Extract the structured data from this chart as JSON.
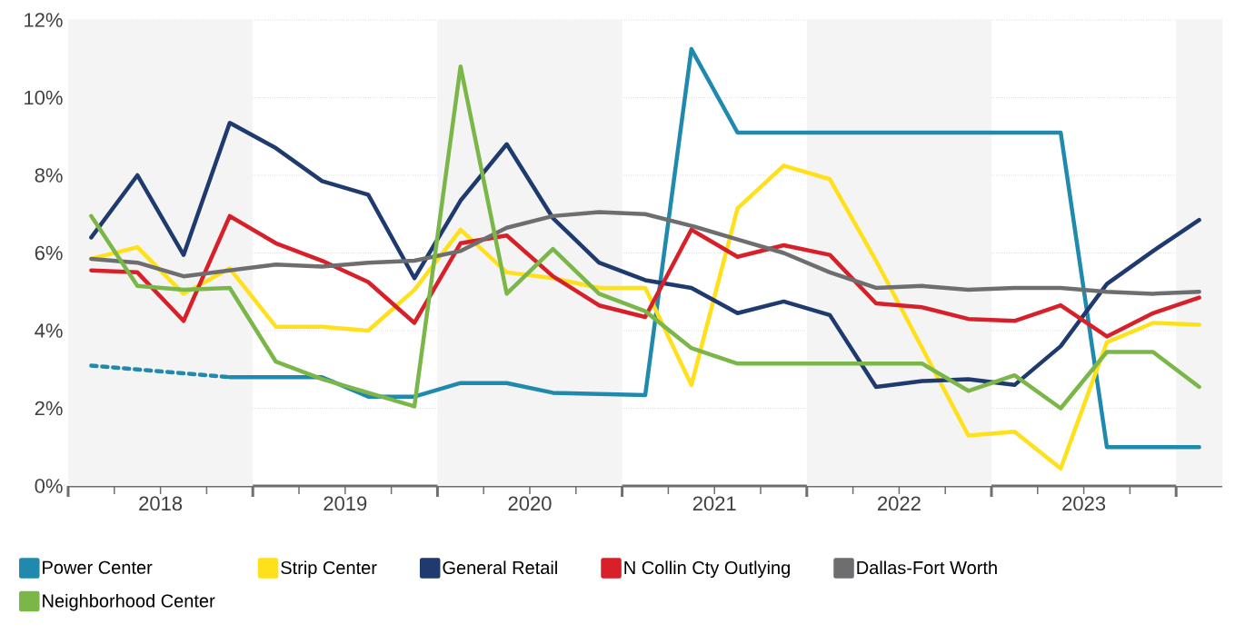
{
  "chart_data": {
    "type": "line",
    "x": [
      2018.125,
      2018.375,
      2018.625,
      2018.875,
      2019.125,
      2019.375,
      2019.625,
      2019.875,
      2020.125,
      2020.375,
      2020.625,
      2020.875,
      2021.125,
      2021.375,
      2021.625,
      2021.875,
      2022.125,
      2022.375,
      2022.625,
      2022.875,
      2023.125,
      2023.375,
      2023.625,
      2023.875,
      2024.125
    ],
    "series": [
      {
        "name": "Power Center",
        "color": "#1f8aad",
        "values": [
          null,
          null,
          null,
          2.8,
          2.8,
          2.8,
          2.3,
          2.3,
          2.65,
          2.65,
          2.4,
          2.37,
          2.34,
          11.25,
          9.1,
          9.1,
          9.1,
          9.1,
          9.1,
          9.1,
          9.1,
          9.1,
          1.0,
          1.0,
          1.0
        ]
      },
      {
        "name": "Strip Center",
        "color": "#ffe01b",
        "values": [
          5.85,
          6.15,
          4.95,
          5.6,
          4.1,
          4.1,
          4.0,
          5.05,
          6.6,
          5.5,
          5.35,
          5.1,
          5.1,
          2.6,
          7.15,
          8.25,
          7.9,
          5.8,
          3.55,
          1.3,
          1.4,
          0.45,
          3.7,
          4.2,
          4.15
        ]
      },
      {
        "name": "General Retail",
        "color": "#1f3a6e",
        "values": [
          6.4,
          8.0,
          5.95,
          9.35,
          8.7,
          7.85,
          7.5,
          5.35,
          7.35,
          8.8,
          6.9,
          5.75,
          5.3,
          5.1,
          4.45,
          4.75,
          4.4,
          2.55,
          2.7,
          2.75,
          2.6,
          3.6,
          5.2,
          6.05,
          6.85
        ]
      },
      {
        "name": "N Collin Cty Outlying",
        "color": "#d7202a",
        "values": [
          5.55,
          5.5,
          4.25,
          6.95,
          6.25,
          5.8,
          5.25,
          4.2,
          6.25,
          6.45,
          5.4,
          4.65,
          4.35,
          6.6,
          5.9,
          6.2,
          5.95,
          4.7,
          4.6,
          4.3,
          4.25,
          4.65,
          3.85,
          4.45,
          4.85
        ]
      },
      {
        "name": "Dallas-Fort Worth",
        "color": "#6d6e70",
        "values": [
          5.85,
          5.75,
          5.4,
          5.55,
          5.7,
          5.65,
          5.75,
          5.8,
          6.05,
          6.65,
          6.95,
          7.05,
          7.0,
          6.7,
          6.35,
          6.0,
          5.5,
          5.1,
          5.15,
          5.05,
          5.1,
          5.1,
          5.0,
          4.95,
          5.0
        ]
      },
      {
        "name": "Neighborhood Center",
        "color": "#7ab648",
        "values": [
          6.95,
          5.15,
          5.05,
          5.1,
          3.2,
          2.75,
          2.4,
          2.05,
          10.8,
          4.95,
          6.1,
          4.95,
          4.5,
          3.55,
          3.15,
          3.15,
          3.15,
          3.15,
          3.15,
          2.45,
          2.85,
          2.0,
          3.45,
          3.45,
          2.55
        ]
      },
      {
        "color": "#1f8aad",
        "line_style": "dotted",
        "values": [
          3.1,
          3.0,
          2.9,
          2.8,
          null,
          null,
          null,
          null,
          null,
          null,
          null,
          null,
          null,
          null,
          null,
          null,
          null,
          null,
          null,
          null,
          null,
          null,
          null,
          null,
          null
        ]
      }
    ],
    "xlim": [
      2018,
      2024.25
    ],
    "xticks": [
      {
        "value": 2018.5,
        "label": "2018"
      },
      {
        "value": 2019.5,
        "label": "2019"
      },
      {
        "value": 2020.5,
        "label": "2020"
      },
      {
        "value": 2021.5,
        "label": "2021"
      },
      {
        "value": 2022.5,
        "label": "2022"
      },
      {
        "value": 2023.5,
        "label": "2023"
      },
      {
        "value": 2018,
        "label": null
      },
      {
        "value": 2019,
        "label": null
      },
      {
        "value": 2020,
        "label": null
      },
      {
        "value": 2021,
        "label": null
      },
      {
        "value": 2022,
        "label": null
      },
      {
        "value": 2023,
        "label": null
      },
      {
        "value": 2024,
        "label": null
      },
      {
        "value": 2018.25,
        "label": null
      },
      {
        "value": 2018.5,
        "label": null
      },
      {
        "value": 2018.75,
        "label": null
      },
      {
        "value": 2019.25,
        "label": null
      },
      {
        "value": 2019.5,
        "label": null
      },
      {
        "value": 2019.75,
        "label": null
      },
      {
        "value": 2020.25,
        "label": null
      },
      {
        "value": 2020.5,
        "label": null
      },
      {
        "value": 2020.75,
        "label": null
      },
      {
        "value": 2021.25,
        "label": null
      },
      {
        "value": 2021.5,
        "label": null
      },
      {
        "value": 2021.75,
        "label": null
      },
      {
        "value": 2022.25,
        "label": null
      },
      {
        "value": 2022.5,
        "label": null
      },
      {
        "value": 2022.75,
        "label": null
      },
      {
        "value": 2023.25,
        "label": null
      },
      {
        "value": 2023.5,
        "label": null
      },
      {
        "value": 2023.75,
        "label": null
      }
    ],
    "ylim": [
      0,
      12
    ],
    "yticks": [
      {
        "value": 0,
        "label": "0%"
      },
      {
        "value": 2,
        "label": "2%"
      },
      {
        "value": 4,
        "label": "4%"
      },
      {
        "value": 6,
        "label": "6%"
      },
      {
        "value": 8,
        "label": "8%"
      },
      {
        "value": 10,
        "label": "10%"
      },
      {
        "value": 12,
        "label": "12%"
      }
    ],
    "bands": [
      {
        "axis": "x",
        "from": 2018,
        "to": 2019,
        "color": "#f4f4f4"
      },
      {
        "axis": "x",
        "from": 2020,
        "to": 2021,
        "color": "#f4f4f4"
      },
      {
        "axis": "x",
        "from": 2022,
        "to": 2023,
        "color": "#f4f4f4"
      },
      {
        "axis": "x",
        "from": 2024,
        "to": 2024.25,
        "color": "#f4f4f4"
      }
    ],
    "grid": "y",
    "legend": "bottom"
  }
}
